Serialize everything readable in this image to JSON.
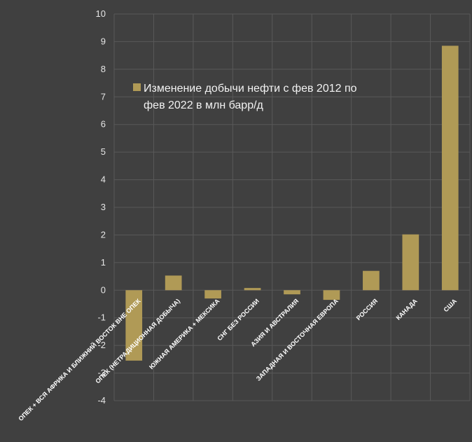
{
  "chart_data": {
    "type": "bar",
    "categories": [
      "ОПЕК + ВСЯ АФРИКА И БЛИЖНИЙ ВОСТОК ВНЕ ОПЕК",
      "ОПЕК (НЕТРАДИЦИОННАЯ ДОБЫЧА)",
      "ЮЖНАЯ АМЕРИКА + МЕКСИКА",
      "СНГ БЕЗ РОССИИ",
      "АЗИЯ И АВСТРАЛИЯ",
      "ЗАПАДНАЯ И ВОСТОЧНАЯ ЕВРОПА",
      "РОССИЯ",
      "КАНАДА",
      "США"
    ],
    "series": [
      {
        "name": "Изменение добычи нефти с фев 2012 по фев 2022 в млн барр/д",
        "values": [
          -2.55,
          0.53,
          -0.3,
          0.08,
          -0.15,
          -0.35,
          0.7,
          2.02,
          8.85
        ]
      }
    ],
    "legend": {
      "line1": "Изменение добычи нефти с фев 2012 по",
      "line2": "фев 2022 в млн барр/д",
      "position": "top-left inside plot"
    },
    "ylim": [
      -4,
      10
    ],
    "yticks": [
      -4,
      -3,
      -2,
      -1,
      0,
      1,
      2,
      3,
      4,
      5,
      6,
      7,
      8,
      9,
      10
    ],
    "grid": true,
    "colors": {
      "background": "#404040",
      "bar": "#b09a56",
      "grid": "#595959",
      "text": "#e6e6e6"
    }
  }
}
